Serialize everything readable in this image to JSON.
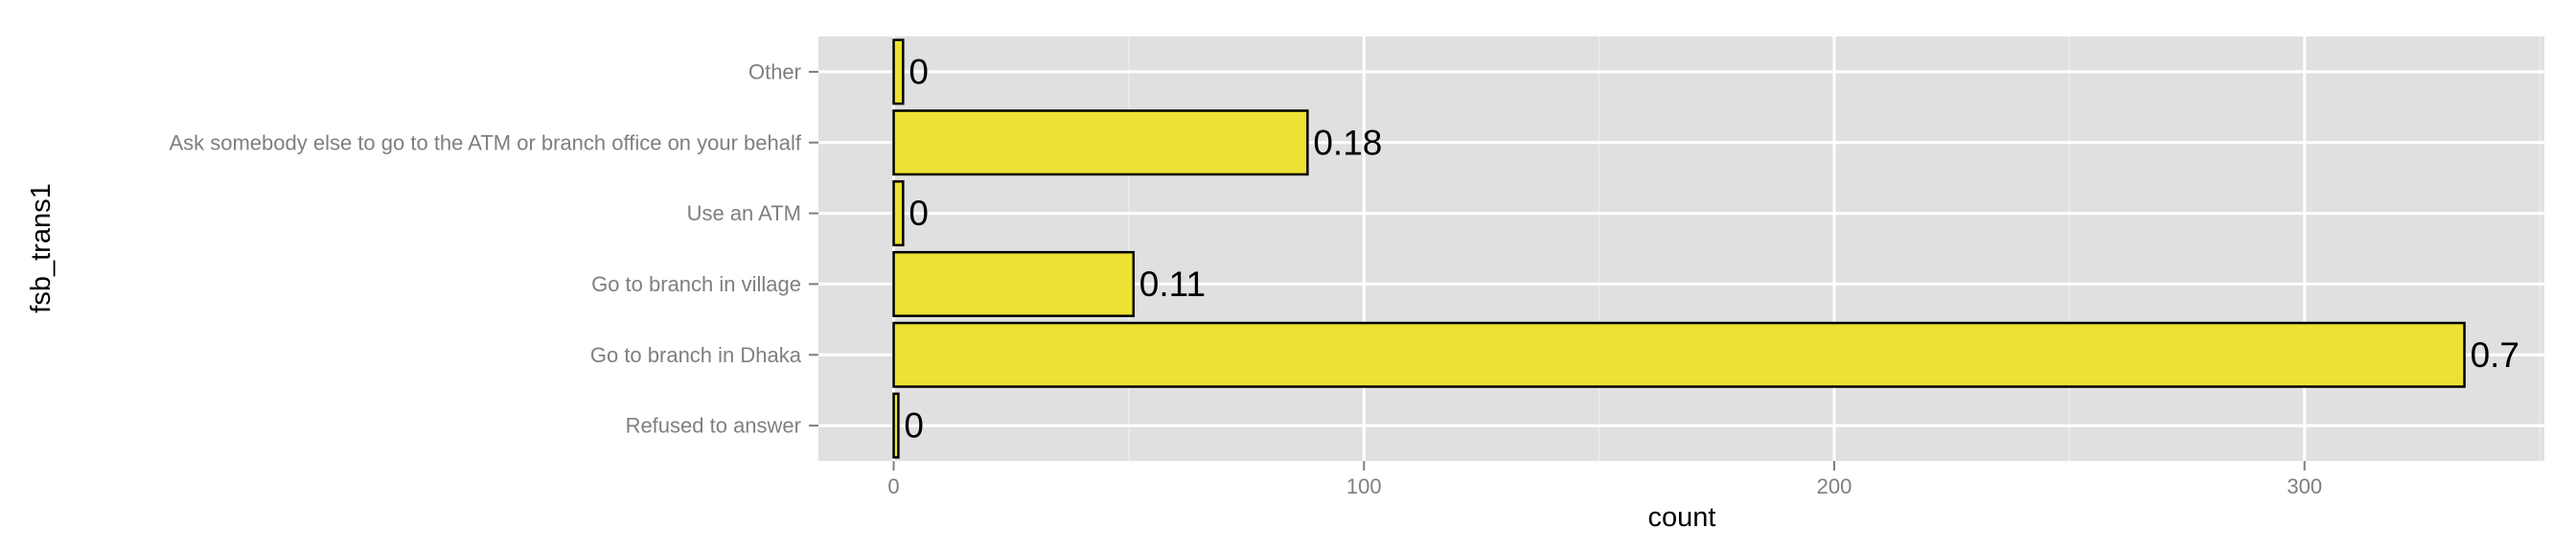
{
  "chart_data": {
    "type": "bar",
    "orientation": "horizontal",
    "categories": [
      "Other",
      "Ask somebody else to go to the ATM or branch office on your behalf",
      "Use an ATM",
      "Go to branch in village",
      "Go to branch in Dhaka",
      "Refused to answer"
    ],
    "values": [
      2,
      88,
      2,
      51,
      334,
      1
    ],
    "data_labels": [
      "0",
      "0.18",
      "0",
      "0.11",
      "0.7",
      "0"
    ],
    "xlabel": "count",
    "ylabel": "fsb_trans1",
    "xlim": [
      -16,
      351
    ],
    "x_ticks": [
      0,
      100,
      200,
      300
    ],
    "x_tick_labels": [
      "0",
      "100",
      "200",
      "300"
    ],
    "x_minor_ticks": [
      50,
      150,
      250,
      350
    ],
    "grid": true,
    "legend": "none",
    "colors": {
      "panel": "#e0e0e0",
      "grid_major": "#ffffff",
      "grid_minor": "#ececec",
      "bar_fill": "#ece134",
      "bar_stroke": "#000000",
      "tick": "#7f7f7f"
    }
  }
}
